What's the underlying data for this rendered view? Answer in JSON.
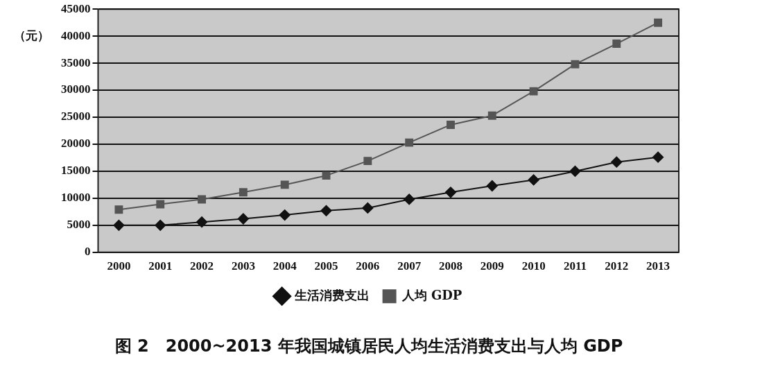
{
  "chart_data": {
    "type": "line",
    "title": "图 2　2000~2013 年我国城镇居民人均生活消费支出与人均 GDP",
    "ylabel": "（元）",
    "categories": [
      "2000",
      "2001",
      "2002",
      "2003",
      "2004",
      "2005",
      "2006",
      "2007",
      "2008",
      "2009",
      "2010",
      "2011",
      "2012",
      "2013"
    ],
    "series": [
      {
        "name": "生活消费支出",
        "color": "#111111",
        "marker": "diamond",
        "values": [
          5000,
          5000,
          5600,
          6200,
          6900,
          7700,
          8200,
          9800,
          11100,
          12300,
          13400,
          15000,
          16700,
          17600
        ]
      },
      {
        "name": "人均 GDP",
        "color": "#555555",
        "marker": "square",
        "values": [
          7900,
          8900,
          9800,
          11100,
          12500,
          14200,
          16900,
          20300,
          23600,
          25300,
          29800,
          34800,
          38600,
          42500
        ]
      }
    ],
    "ylim": [
      0,
      45000
    ],
    "yticks": [
      0,
      5000,
      10000,
      15000,
      20000,
      25000,
      30000,
      35000,
      40000,
      45000
    ],
    "grid": "y",
    "legend": "bottom"
  }
}
